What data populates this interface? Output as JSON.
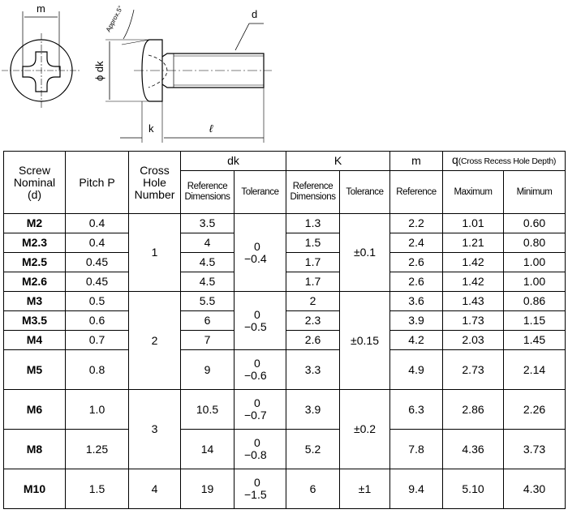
{
  "drawing": {
    "labels": {
      "m": "m",
      "d": "d",
      "dk": "ϕ dk",
      "k": "k",
      "l": "ℓ",
      "angle": "Approx.5°"
    }
  },
  "table": {
    "headers": {
      "nominal": [
        "Screw",
        "Nominal",
        "(d)"
      ],
      "pitch": "Pitch  P",
      "cross": [
        "Cross",
        "Hole",
        "Number"
      ],
      "dk": "dk",
      "K": "K",
      "m": "m",
      "q": "q",
      "q_note": "(Cross Recess Hole Depth)",
      "ref_dim": [
        "Reference",
        "Dimensions"
      ],
      "tolerance": "Tolerance",
      "reference": "Reference",
      "maximum": "Maximum",
      "minimum": "Minimum"
    },
    "rows": [
      {
        "nominal": "M2",
        "pitch": "0.4",
        "dk": "3.5",
        "k": "1.3",
        "m": "2.2",
        "qmax": "1.01",
        "qmin": "0.60"
      },
      {
        "nominal": "M2.3",
        "pitch": "0.4",
        "dk": "4",
        "k": "1.5",
        "m": "2.4",
        "qmax": "1.21",
        "qmin": "0.80"
      },
      {
        "nominal": "M2.5",
        "pitch": "0.45",
        "dk": "4.5",
        "k": "1.7",
        "m": "2.6",
        "qmax": "1.42",
        "qmin": "1.00"
      },
      {
        "nominal": "M2.6",
        "pitch": "0.45",
        "dk": "4.5",
        "k": "1.7",
        "m": "2.6",
        "qmax": "1.42",
        "qmin": "1.00"
      },
      {
        "nominal": "M3",
        "pitch": "0.5",
        "dk": "5.5",
        "k": "2",
        "m": "3.6",
        "qmax": "1.43",
        "qmin": "0.86"
      },
      {
        "nominal": "M3.5",
        "pitch": "0.6",
        "dk": "6",
        "k": "2.3",
        "m": "3.9",
        "qmax": "1.73",
        "qmin": "1.15"
      },
      {
        "nominal": "M4",
        "pitch": "0.7",
        "dk": "7",
        "k": "2.6",
        "m": "4.2",
        "qmax": "2.03",
        "qmin": "1.45"
      },
      {
        "nominal": "M5",
        "pitch": "0.8",
        "dk": "9",
        "k": "3.3",
        "m": "4.9",
        "qmax": "2.73",
        "qmin": "2.14"
      },
      {
        "nominal": "M6",
        "pitch": "1.0",
        "dk": "10.5",
        "k": "3.9",
        "m": "6.3",
        "qmax": "2.86",
        "qmin": "2.26"
      },
      {
        "nominal": "M8",
        "pitch": "1.25",
        "dk": "14",
        "k": "5.2",
        "m": "7.8",
        "qmax": "4.36",
        "qmin": "3.73"
      },
      {
        "nominal": "M10",
        "pitch": "1.5",
        "dk": "19",
        "k": "6",
        "m": "9.4",
        "qmax": "5.10",
        "qmin": "4.30"
      }
    ],
    "cross_hole": [
      "1",
      "2",
      "3",
      "4"
    ],
    "dk_tol": [
      {
        "upper": "0",
        "lower": "−0.4"
      },
      {
        "upper": "0",
        "lower": "−0.5"
      },
      {
        "upper": "0",
        "lower": "−0.6"
      },
      {
        "upper": "0",
        "lower": "−0.7"
      },
      {
        "upper": "0",
        "lower": "−0.8"
      },
      {
        "upper": "0",
        "lower": "−1.5"
      }
    ],
    "k_tol": [
      "±0.1",
      "±0.15",
      "±0.2",
      "±1"
    ]
  }
}
